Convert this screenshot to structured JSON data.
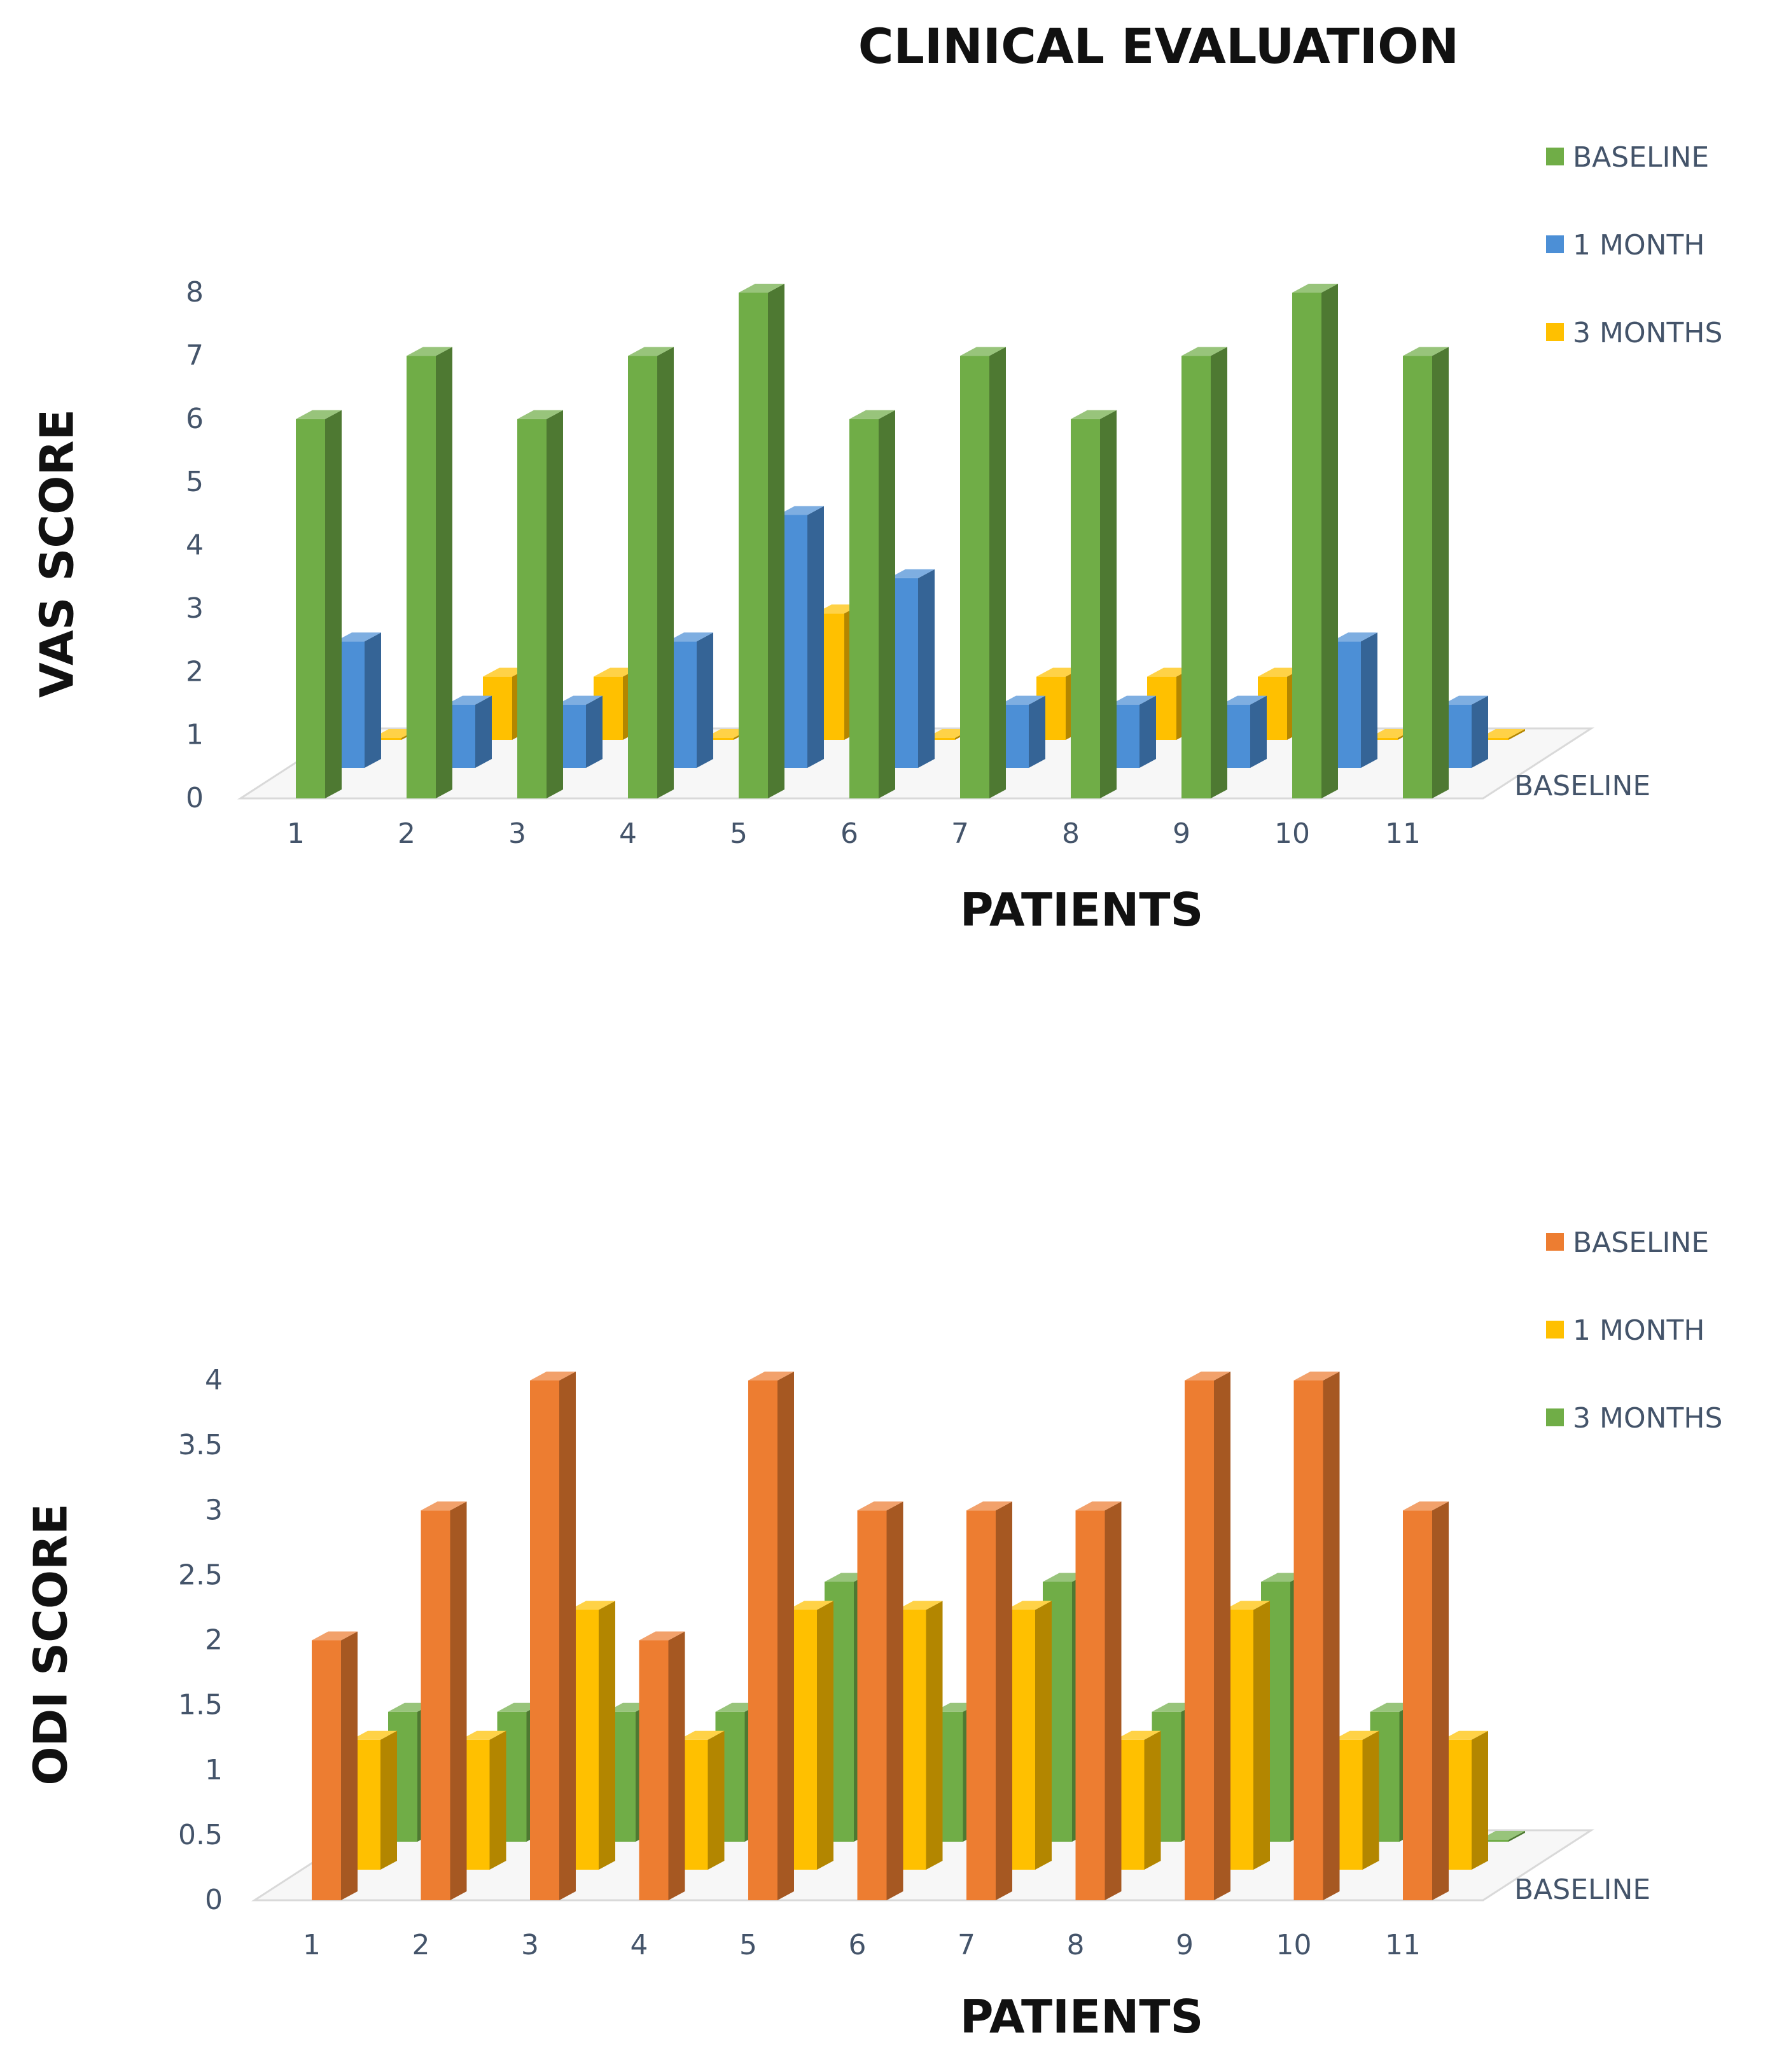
{
  "title": "CLINICAL EVALUATION",
  "chart_data": [
    {
      "type": "bar",
      "subtype": "3d-clustered-column",
      "title": "",
      "xlabel": "PATIENTS",
      "ylabel": "VAS SCORE",
      "depth_axis_label": "BASELINE",
      "ylim": [
        0,
        8
      ],
      "yticks": [
        "0",
        "1",
        "2",
        "3",
        "4",
        "5",
        "6",
        "7",
        "8"
      ],
      "categories": [
        "1",
        "2",
        "3",
        "4",
        "5",
        "6",
        "7",
        "8",
        "9",
        "10",
        "11"
      ],
      "legend_position": "top-right",
      "series": [
        {
          "name": "BASELINE",
          "color": "#70AD47",
          "values": [
            6,
            7,
            6,
            7,
            8,
            6,
            7,
            6,
            7,
            8,
            7
          ]
        },
        {
          "name": "1 MONTH",
          "color": "#4C8FD6",
          "values": [
            2,
            1,
            1,
            2,
            4,
            3,
            1,
            1,
            1,
            2,
            1
          ]
        },
        {
          "name": "3 MONTHS",
          "color": "#FFC000",
          "values": [
            0,
            1,
            1,
            0,
            2,
            0,
            1,
            1,
            1,
            0,
            0
          ]
        }
      ]
    },
    {
      "type": "bar",
      "subtype": "3d-clustered-column",
      "title": "",
      "xlabel": "PATIENTS",
      "ylabel": "ODI SCORE",
      "depth_axis_label": "BASELINE",
      "ylim": [
        0,
        4
      ],
      "yticks": [
        "0",
        "0.5",
        "1",
        "1.5",
        "2",
        "2.5",
        "3",
        "3.5",
        "4"
      ],
      "categories": [
        "1",
        "2",
        "3",
        "4",
        "5",
        "6",
        "7",
        "8",
        "9",
        "10",
        "11"
      ],
      "legend_position": "top-right",
      "series": [
        {
          "name": "BASELINE",
          "color": "#ED7D31",
          "values": [
            2,
            3,
            4,
            2,
            4,
            3,
            3,
            3,
            4,
            4,
            3
          ]
        },
        {
          "name": "1 MONTH",
          "color": "#FFC000",
          "values": [
            1,
            1,
            2,
            1,
            2,
            2,
            2,
            1,
            2,
            1,
            1
          ]
        },
        {
          "name": "3 MONTHS",
          "color": "#70AD47",
          "values": [
            1,
            1,
            1,
            1,
            2,
            1,
            2,
            1,
            2,
            1,
            0
          ]
        }
      ]
    }
  ]
}
